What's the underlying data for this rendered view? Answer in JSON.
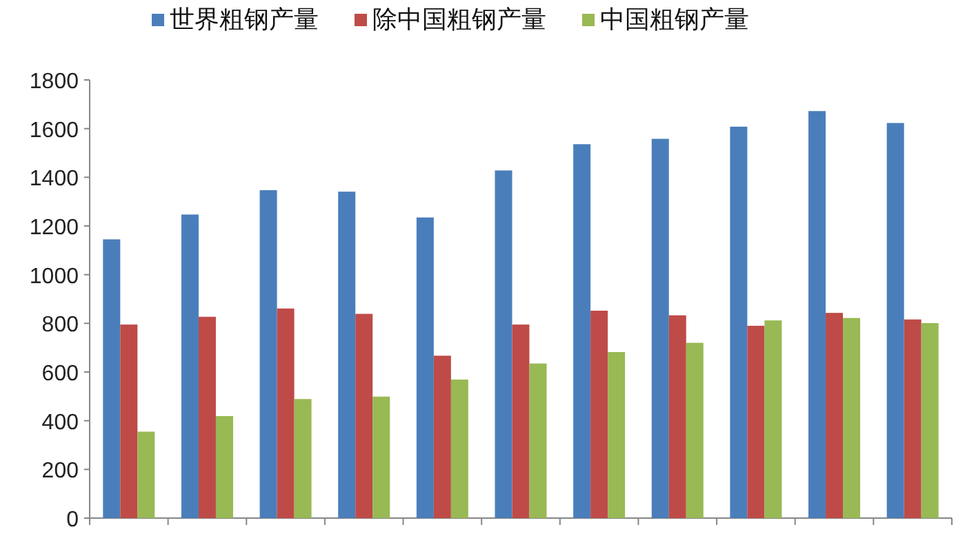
{
  "chart_data": {
    "type": "bar",
    "categories": [
      null,
      null,
      null,
      null,
      null,
      null,
      null,
      null,
      null,
      null,
      null
    ],
    "series": [
      {
        "name": "世界粗钢产量",
        "color": "#4a7ebb",
        "values": [
          1145,
          1247,
          1347,
          1341,
          1235,
          1428,
          1536,
          1558,
          1608,
          1672,
          1623
        ]
      },
      {
        "name": "除中国粗钢产量",
        "color": "#be4b48",
        "values": [
          795,
          827,
          861,
          839,
          667,
          795,
          852,
          833,
          790,
          843,
          816
        ]
      },
      {
        "name": "中国粗钢产量",
        "color": "#98b954",
        "values": [
          355,
          419,
          489,
          499,
          569,
          635,
          682,
          720,
          812,
          822,
          801
        ]
      }
    ],
    "ylim": [
      0,
      1800
    ],
    "yticks": [
      0,
      200,
      400,
      600,
      800,
      1000,
      1200,
      1400,
      1600,
      1800
    ],
    "grid": false,
    "legend": "top"
  }
}
